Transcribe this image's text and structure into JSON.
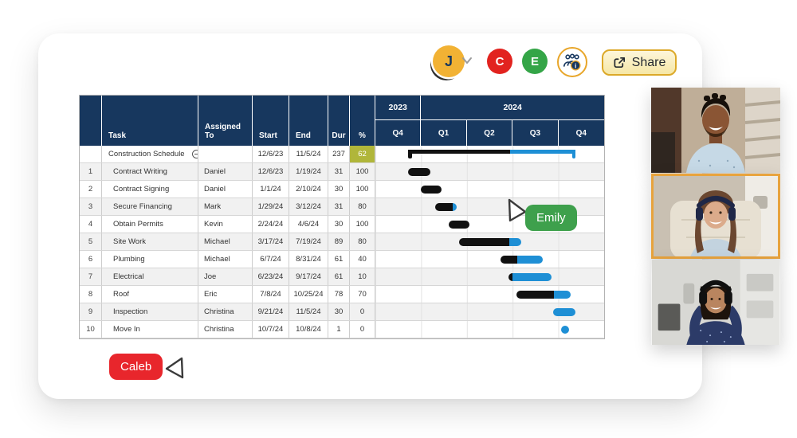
{
  "toolbar": {
    "avatars": [
      {
        "initial": "J",
        "bg": "#f2b234",
        "fg": "#17375e"
      },
      {
        "initial": "C",
        "bg": "#e2231f",
        "fg": "#ffffff"
      },
      {
        "initial": "E",
        "bg": "#34a547",
        "fg": "#ffffff"
      }
    ],
    "share_label": "Share"
  },
  "table": {
    "columns": {
      "task": "Task",
      "assigned": "Assigned To",
      "start": "Start",
      "end": "End",
      "dur": "Dur",
      "pct": "%"
    },
    "years": [
      {
        "label": "2023",
        "span": 1
      },
      {
        "label": "2024",
        "span": 4
      }
    ],
    "quarters": [
      "Q4",
      "Q1",
      "Q2",
      "Q3",
      "Q4"
    ],
    "summary": {
      "task": "Construction Schedule",
      "assigned": "",
      "start": "12/6/23",
      "end": "11/5/24",
      "dur": "237",
      "pct": "62",
      "bar": {
        "start": 14.3,
        "end": 87.6,
        "complete": 0.61
      }
    },
    "rows": [
      {
        "num": "1",
        "task": "Contract Writing",
        "assigned": "Daniel",
        "start": "12/6/23",
        "end": "1/19/24",
        "dur": "31",
        "pct": "100",
        "bar": {
          "start": 14.3,
          "end": 24.0,
          "complete": 1
        }
      },
      {
        "num": "2",
        "task": "Contract Signing",
        "assigned": "Daniel",
        "start": "1/1/24",
        "end": "2/10/24",
        "dur": "30",
        "pct": "100",
        "bar": {
          "start": 20.0,
          "end": 28.8,
          "complete": 1
        }
      },
      {
        "num": "3",
        "task": "Secure Financing",
        "assigned": "Mark",
        "start": "1/29/24",
        "end": "3/12/24",
        "dur": "31",
        "pct": "80",
        "bar": {
          "start": 26.2,
          "end": 35.6,
          "complete": 0.8
        }
      },
      {
        "num": "4",
        "task": "Obtain Permits",
        "assigned": "Kevin",
        "start": "2/24/24",
        "end": "4/6/24",
        "dur": "30",
        "pct": "100",
        "bar": {
          "start": 31.9,
          "end": 41.1,
          "complete": 1
        }
      },
      {
        "num": "5",
        "task": "Site Work",
        "assigned": "Michael",
        "start": "3/17/24",
        "end": "7/19/24",
        "dur": "89",
        "pct": "80",
        "bar": {
          "start": 36.7,
          "end": 63.9,
          "complete": 0.8
        }
      },
      {
        "num": "6",
        "task": "Plumbing",
        "assigned": "Michael",
        "start": "6/7/24",
        "end": "8/31/24",
        "dur": "61",
        "pct": "40",
        "bar": {
          "start": 54.7,
          "end": 73.3,
          "complete": 0.4
        }
      },
      {
        "num": "7",
        "task": "Electrical",
        "assigned": "Joe",
        "start": "6/23/24",
        "end": "9/17/24",
        "dur": "61",
        "pct": "10",
        "bar": {
          "start": 58.2,
          "end": 77.0,
          "complete": 0.1
        }
      },
      {
        "num": "8",
        "task": "Roof",
        "assigned": "Eric",
        "start": "7/8/24",
        "end": "10/25/24",
        "dur": "78",
        "pct": "70",
        "bar": {
          "start": 61.5,
          "end": 85.2,
          "complete": 0.7
        }
      },
      {
        "num": "9",
        "task": "Inspection",
        "assigned": "Christina",
        "start": "9/21/24",
        "end": "11/5/24",
        "dur": "30",
        "pct": "0",
        "bar": {
          "start": 77.8,
          "end": 87.6,
          "complete": 0
        }
      },
      {
        "num": "10",
        "task": "Move In",
        "assigned": "Christina",
        "start": "10/7/24",
        "end": "10/8/24",
        "dur": "1",
        "pct": "0",
        "bar": {
          "start": 81.3,
          "end": 82.2,
          "complete": 0,
          "dot": true
        }
      }
    ]
  },
  "colors": {
    "header_navy": "#17375e",
    "bar_black": "#111111",
    "bar_blue": "#1e8fd5",
    "pct_highlight": "#b0b63a",
    "share_gold": "#dca929"
  },
  "cursors": [
    {
      "name": "Emily",
      "color": "#3ea04c"
    },
    {
      "name": "Caleb",
      "color": "#e8262c"
    }
  ],
  "video_panel": {
    "active_border": "#e8a33d",
    "tiles": [
      {
        "id": "participant-1",
        "active": false
      },
      {
        "id": "participant-2",
        "active": true
      },
      {
        "id": "participant-3",
        "active": false
      }
    ]
  }
}
